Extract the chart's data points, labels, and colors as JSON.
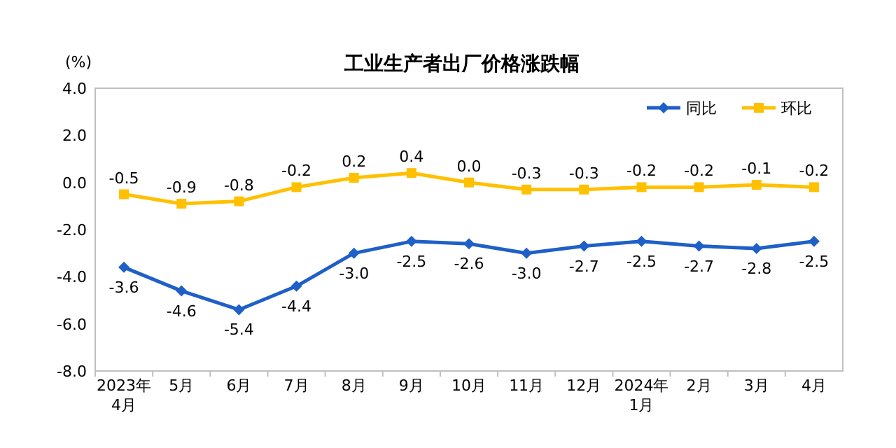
{
  "chart_data": {
    "type": "line",
    "title": "工业生产者出厂价格涨跌幅",
    "ylabel": "(%)",
    "categories": [
      "2023年\n4月",
      "5月",
      "6月",
      "7月",
      "8月",
      "9月",
      "10月",
      "11月",
      "12月",
      "2024年\n1月",
      "2月",
      "3月",
      "4月"
    ],
    "series": [
      {
        "name": "同比",
        "color": "#1f5fc8",
        "marker": "diamond",
        "values": [
          -3.6,
          -4.6,
          -5.4,
          -4.4,
          -3.0,
          -2.5,
          -2.6,
          -3.0,
          -2.7,
          -2.5,
          -2.7,
          -2.8,
          -2.5
        ],
        "value_labels": [
          "-3.6",
          "-4.6",
          "-5.4",
          "-4.4",
          "-3.0",
          "-2.5",
          "-2.6",
          "-3.0",
          "-2.7",
          "-2.5",
          "-2.7",
          "-2.8",
          "-2.5"
        ]
      },
      {
        "name": "环比",
        "color": "#ffc000",
        "marker": "square",
        "values": [
          -0.5,
          -0.9,
          -0.8,
          -0.2,
          0.2,
          0.4,
          0.0,
          -0.3,
          -0.3,
          -0.2,
          -0.2,
          -0.1,
          -0.2
        ],
        "value_labels": [
          "-0.5",
          "-0.9",
          "-0.8",
          "-0.2",
          "0.2",
          "0.4",
          "0.0",
          "-0.3",
          "-0.3",
          "-0.2",
          "-0.2",
          "-0.1",
          "-0.2"
        ]
      }
    ],
    "ylim": [
      -8,
      4
    ],
    "yticks": [
      {
        "value": 4,
        "label": "4.0"
      },
      {
        "value": 2,
        "label": "2.0"
      },
      {
        "value": 0,
        "label": "0.0"
      },
      {
        "value": -2,
        "label": "-2.0"
      },
      {
        "value": -4,
        "label": "-4.0"
      },
      {
        "value": -6,
        "label": "-6.0"
      },
      {
        "value": -8,
        "label": "-8.0"
      }
    ],
    "legend": "top right",
    "grid": false
  }
}
